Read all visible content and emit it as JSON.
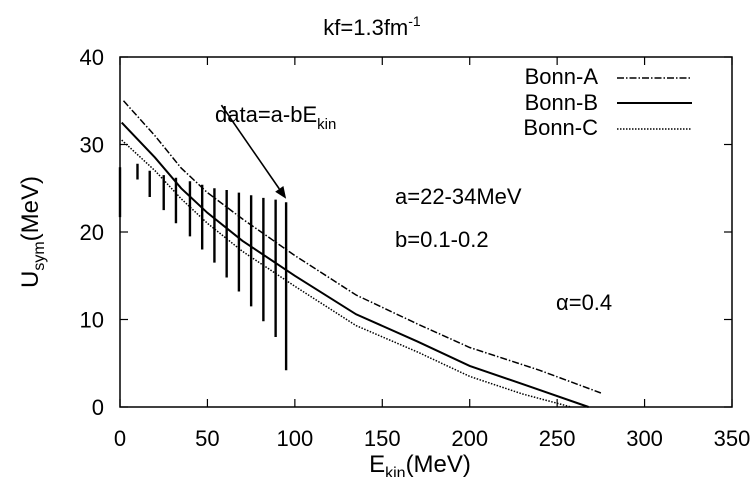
{
  "chart_data": {
    "type": "line",
    "title": "kf=1.3fm",
    "title_sup": "-1",
    "xlabel": "E",
    "xlabel_sub": "kin",
    "xlabel_unit": "(MeV)",
    "ylabel": "U",
    "ylabel_sub": "sym",
    "ylabel_unit": "(MeV)",
    "xlim": [
      0,
      350
    ],
    "ylim": [
      0,
      40
    ],
    "xticks": [
      0,
      50,
      100,
      150,
      200,
      250,
      300,
      350
    ],
    "yticks": [
      0,
      10,
      20,
      30,
      40
    ],
    "grid": false,
    "legend_position": "top-right",
    "series": [
      {
        "name": "Bonn-A",
        "style": "dash-dot",
        "x": [
          2,
          20,
          35,
          50,
          70,
          100,
          135,
          170,
          200,
          240,
          275
        ],
        "y": [
          35,
          31,
          27.3,
          24.5,
          21.5,
          17.3,
          12.8,
          9.5,
          6.8,
          4.2,
          1.6
        ]
      },
      {
        "name": "Bonn-B",
        "style": "solid",
        "x": [
          1,
          20,
          35,
          50,
          70,
          100,
          135,
          170,
          200,
          235,
          268
        ],
        "y": [
          32.5,
          28.5,
          25,
          22.2,
          19,
          15,
          10.6,
          7.5,
          4.7,
          2.3,
          0
        ]
      },
      {
        "name": "Bonn-C",
        "style": "dotted",
        "x": [
          1,
          20,
          35,
          50,
          70,
          100,
          135,
          170,
          200,
          230,
          258
        ],
        "y": [
          30.5,
          27,
          23.8,
          21,
          17.8,
          13.8,
          9.3,
          6.3,
          3.5,
          1.5,
          0
        ]
      }
    ],
    "data_bands": [
      {
        "x": 0,
        "ymin": 21.7,
        "ymax": 27.4
      },
      {
        "x": 10,
        "ymin": 26.0,
        "ymax": 27.8
      },
      {
        "x": 17,
        "ymin": 24.0,
        "ymax": 27.0
      },
      {
        "x": 25,
        "ymin": 22.5,
        "ymax": 26.5
      },
      {
        "x": 32,
        "ymin": 21.0,
        "ymax": 26.2
      },
      {
        "x": 40,
        "ymin": 19.5,
        "ymax": 25.8
      },
      {
        "x": 47,
        "ymin": 18.0,
        "ymax": 25.4
      },
      {
        "x": 54,
        "ymin": 16.5,
        "ymax": 25.0
      },
      {
        "x": 61,
        "ymin": 14.8,
        "ymax": 24.8
      },
      {
        "x": 68,
        "ymin": 13.2,
        "ymax": 24.5
      },
      {
        "x": 75,
        "ymin": 11.5,
        "ymax": 24.2
      },
      {
        "x": 82,
        "ymin": 9.8,
        "ymax": 23.9
      },
      {
        "x": 89,
        "ymin": 8.0,
        "ymax": 23.7
      },
      {
        "x": 95,
        "ymin": 4.2,
        "ymax": 23.4
      }
    ],
    "annotations": {
      "data_label": "data=a-bE",
      "data_label_sub": "kin",
      "a_label": "a=22-34MeV",
      "b_label": "b=0.1-0.2",
      "alpha_label": "α=0.4"
    },
    "arrow": {
      "from": [
        58,
        34.5
      ],
      "to": [
        95,
        23.8
      ]
    }
  }
}
